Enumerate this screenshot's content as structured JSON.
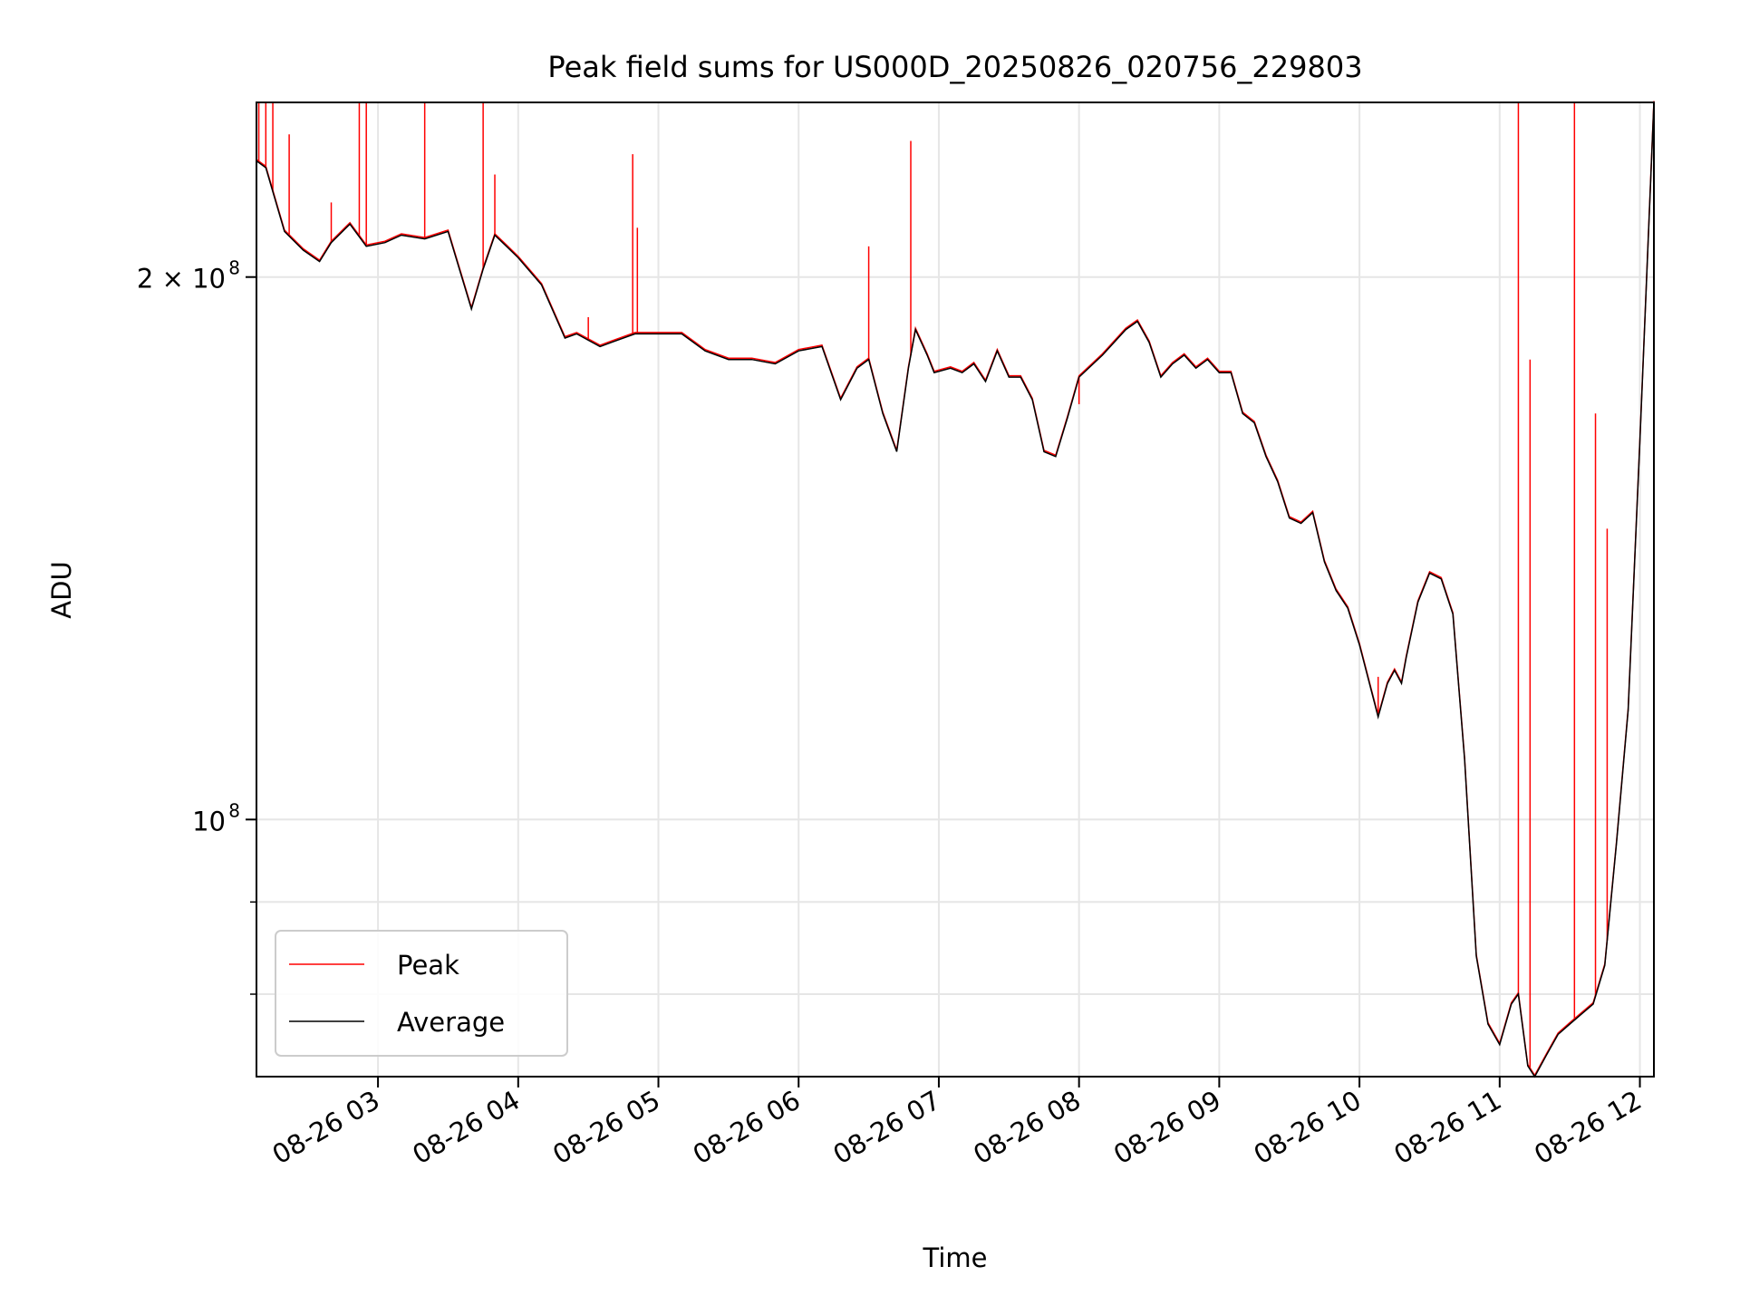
{
  "chart_data": {
    "type": "line",
    "title": "Peak field sums for US000D_20250826_020756_229803",
    "xlabel": "Time",
    "ylabel": "ADU",
    "y_scale": "log",
    "grid": true,
    "legend_position": "lower-left",
    "xlim": [
      "08-26 02:08",
      "08-26 12:06"
    ],
    "ylim": [
      72000000,
      250000000
    ],
    "x_ticks": [
      "08-26 03",
      "08-26 04",
      "08-26 05",
      "08-26 06",
      "08-26 07",
      "08-26 08",
      "08-26 09",
      "08-26 10",
      "08-26 11",
      "08-26 12"
    ],
    "y_ticks": [
      {
        "value": 100000000,
        "label": "10",
        "exp": "8"
      },
      {
        "value": 200000000,
        "label": "2 × 10",
        "exp": "8"
      }
    ],
    "series": [
      {
        "name": "Average",
        "color": "#000000",
        "x": [
          "08-26 02:08",
          "08-26 02:12",
          "08-26 02:20",
          "08-26 02:28",
          "08-26 02:35",
          "08-26 02:40",
          "08-26 02:48",
          "08-26 02:55",
          "08-26 03:03",
          "08-26 03:10",
          "08-26 03:20",
          "08-26 03:30",
          "08-26 03:40",
          "08-26 03:45",
          "08-26 03:50",
          "08-26 03:55",
          "08-26 04:00",
          "08-26 04:10",
          "08-26 04:20",
          "08-26 04:25",
          "08-26 04:35",
          "08-26 04:40",
          "08-26 04:50",
          "08-26 05:00",
          "08-26 05:10",
          "08-26 05:20",
          "08-26 05:30",
          "08-26 05:40",
          "08-26 05:50",
          "08-26 06:00",
          "08-26 06:10",
          "08-26 06:18",
          "08-26 06:25",
          "08-26 06:30",
          "08-26 06:36",
          "08-26 06:42",
          "08-26 06:47",
          "08-26 06:50",
          "08-26 06:55",
          "08-26 06:58",
          "08-26 07:05",
          "08-26 07:10",
          "08-26 07:15",
          "08-26 07:20",
          "08-26 07:25",
          "08-26 07:30",
          "08-26 07:35",
          "08-26 07:40",
          "08-26 07:45",
          "08-26 07:50",
          "08-26 07:55",
          "08-26 08:00",
          "08-26 08:10",
          "08-26 08:20",
          "08-26 08:25",
          "08-26 08:30",
          "08-26 08:35",
          "08-26 08:40",
          "08-26 08:45",
          "08-26 08:50",
          "08-26 08:55",
          "08-26 09:00",
          "08-26 09:05",
          "08-26 09:10",
          "08-26 09:15",
          "08-26 09:20",
          "08-26 09:25",
          "08-26 09:30",
          "08-26 09:35",
          "08-26 09:40",
          "08-26 09:45",
          "08-26 09:50",
          "08-26 09:55",
          "08-26 10:00",
          "08-26 10:05",
          "08-26 10:08",
          "08-26 10:12",
          "08-26 10:15",
          "08-26 10:18",
          "08-26 10:20",
          "08-26 10:25",
          "08-26 10:30",
          "08-26 10:35",
          "08-26 10:40",
          "08-26 10:45",
          "08-26 10:50",
          "08-26 10:55",
          "08-26 11:00",
          "08-26 11:05",
          "08-26 11:08",
          "08-26 11:12",
          "08-26 11:15",
          "08-26 11:20",
          "08-26 11:25",
          "08-26 11:30",
          "08-26 11:35",
          "08-26 11:40",
          "08-26 11:45",
          "08-26 11:50",
          "08-26 11:55",
          "08-26 12:00",
          "08-26 12:06"
        ],
        "y": [
          232000000,
          230000000,
          212000000,
          207000000,
          204000000,
          209000000,
          214000000,
          208000000,
          209000000,
          211000000,
          210000000,
          212000000,
          192000000,
          202000000,
          211000000,
          208000000,
          205000000,
          198000000,
          185000000,
          186000000,
          183000000,
          184000000,
          186000000,
          186000000,
          186000000,
          182000000,
          180000000,
          180000000,
          179000000,
          182000000,
          183000000,
          171000000,
          178000000,
          180000000,
          168000000,
          160000000,
          178000000,
          187000000,
          181000000,
          177000000,
          178000000,
          177000000,
          179000000,
          175000000,
          182000000,
          176000000,
          176000000,
          171000000,
          160000000,
          159000000,
          167000000,
          176000000,
          181000000,
          187000000,
          189000000,
          184000000,
          176000000,
          179000000,
          181000000,
          178000000,
          180000000,
          177000000,
          177000000,
          168000000,
          166000000,
          159000000,
          154000000,
          147000000,
          146000000,
          148000000,
          139000000,
          134000000,
          131000000,
          125000000,
          118000000,
          114000000,
          119000000,
          121000000,
          119000000,
          123000000,
          132000000,
          137000000,
          136000000,
          130000000,
          108000000,
          84000000,
          77000000,
          75000000,
          79000000,
          80000000,
          73000000,
          72000000,
          74000000,
          76000000,
          77000000,
          78000000,
          79000000,
          83000000,
          97000000,
          115000000,
          162000000,
          250000000
        ]
      },
      {
        "name": "Peak",
        "color": "#ff0000",
        "spikes": [
          {
            "x": "08-26 02:09",
            "y": 250000000
          },
          {
            "x": "08-26 02:12",
            "y": 250000000
          },
          {
            "x": "08-26 02:15",
            "y": 250000000
          },
          {
            "x": "08-26 02:22",
            "y": 240000000
          },
          {
            "x": "08-26 02:40",
            "y": 220000000
          },
          {
            "x": "08-26 02:52",
            "y": 250000000
          },
          {
            "x": "08-26 02:55",
            "y": 250000000
          },
          {
            "x": "08-26 03:20",
            "y": 250000000
          },
          {
            "x": "08-26 03:45",
            "y": 250000000
          },
          {
            "x": "08-26 03:50",
            "y": 228000000
          },
          {
            "x": "08-26 04:30",
            "y": 190000000
          },
          {
            "x": "08-26 04:49",
            "y": 234000000
          },
          {
            "x": "08-26 04:51",
            "y": 213000000
          },
          {
            "x": "08-26 06:30",
            "y": 208000000
          },
          {
            "x": "08-26 06:48",
            "y": 238000000
          },
          {
            "x": "08-26 08:00",
            "y": 170000000
          },
          {
            "x": "08-26 10:08",
            "y": 120000000
          },
          {
            "x": "08-26 11:08",
            "y": 250000000
          },
          {
            "x": "08-26 11:13",
            "y": 180000000
          },
          {
            "x": "08-26 11:32",
            "y": 250000000
          },
          {
            "x": "08-26 11:41",
            "y": 168000000
          },
          {
            "x": "08-26 11:46",
            "y": 145000000
          }
        ]
      }
    ]
  }
}
